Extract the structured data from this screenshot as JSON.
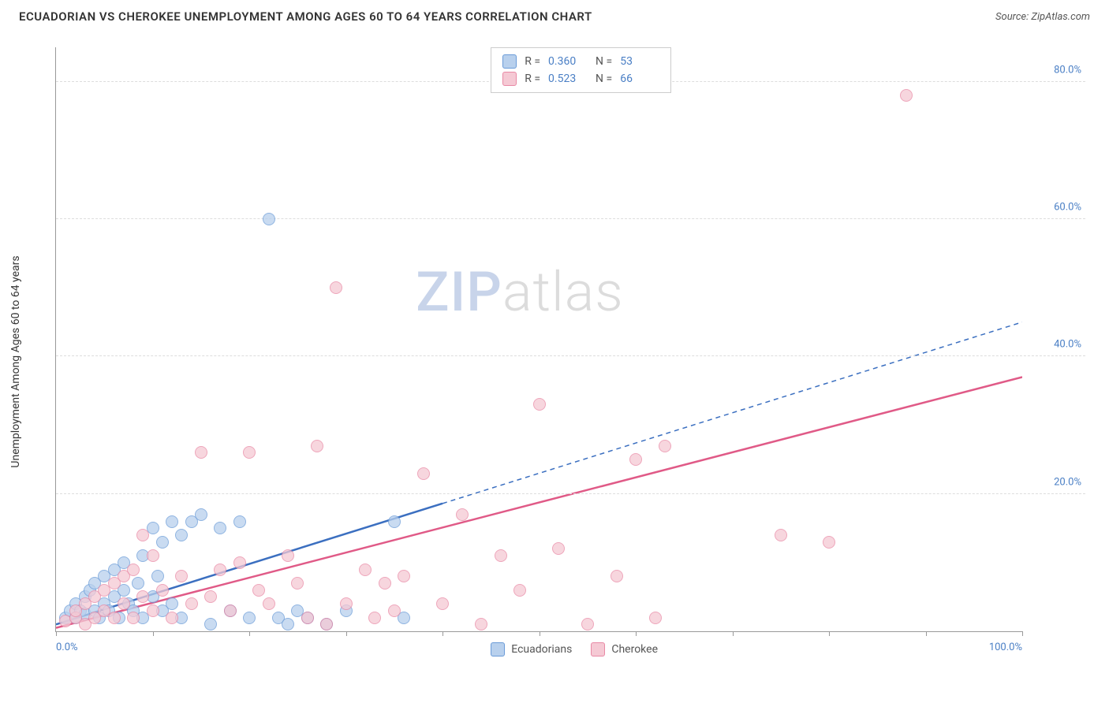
{
  "header": {
    "title": "ECUADORIAN VS CHEROKEE UNEMPLOYMENT AMONG AGES 60 TO 64 YEARS CORRELATION CHART",
    "source": "Source: ZipAtlas.com"
  },
  "watermark": {
    "part1": "ZIP",
    "part2": "atlas"
  },
  "chart": {
    "type": "scatter",
    "y_axis_label": "Unemployment Among Ages 60 to 64 years",
    "xlim": [
      0,
      100
    ],
    "ylim": [
      0,
      85
    ],
    "x_ticks": [
      0,
      10,
      20,
      30,
      40,
      50,
      60,
      70,
      80,
      90,
      100
    ],
    "x_tick_labels_shown": {
      "0": "0.0%",
      "100": "100.0%"
    },
    "y_tick_values": [
      20,
      40,
      60,
      80
    ],
    "y_tick_labels": [
      "20.0%",
      "40.0%",
      "60.0%",
      "80.0%"
    ],
    "grid_color": "#dddddd",
    "axis_color": "#999999",
    "tick_label_color": "#4a7fc5",
    "background_color": "#ffffff",
    "marker_radius": 8,
    "marker_border_width": 1.5,
    "series": [
      {
        "name": "Ecuadorians",
        "color_fill": "#b8d0ed",
        "color_border": "#6a9bd8",
        "r_value": "0.360",
        "n_value": "53",
        "trend": {
          "x1": 0,
          "y1": 1,
          "x2": 100,
          "y2": 45,
          "solid_until_x": 40,
          "line_width": 2.5,
          "color": "#3b6fc0"
        },
        "points": [
          [
            1,
            2
          ],
          [
            1.5,
            3
          ],
          [
            2,
            4
          ],
          [
            2,
            2
          ],
          [
            2.5,
            3
          ],
          [
            3,
            2.5
          ],
          [
            3,
            5
          ],
          [
            3.5,
            6
          ],
          [
            4,
            3
          ],
          [
            4,
            7
          ],
          [
            4.5,
            2
          ],
          [
            5,
            4
          ],
          [
            5,
            8
          ],
          [
            5.5,
            3
          ],
          [
            6,
            5
          ],
          [
            6,
            9
          ],
          [
            6.5,
            2
          ],
          [
            7,
            6
          ],
          [
            7,
            10
          ],
          [
            7.5,
            4
          ],
          [
            8,
            3
          ],
          [
            8.5,
            7
          ],
          [
            9,
            2
          ],
          [
            9,
            11
          ],
          [
            10,
            5
          ],
          [
            10,
            15
          ],
          [
            10.5,
            8
          ],
          [
            11,
            3
          ],
          [
            11,
            13
          ],
          [
            12,
            4
          ],
          [
            12,
            16
          ],
          [
            13,
            2
          ],
          [
            13,
            14
          ],
          [
            14,
            16
          ],
          [
            15,
            17
          ],
          [
            16,
            1
          ],
          [
            17,
            15
          ],
          [
            18,
            3
          ],
          [
            19,
            16
          ],
          [
            20,
            2
          ],
          [
            22,
            60
          ],
          [
            23,
            2
          ],
          [
            24,
            1
          ],
          [
            25,
            3
          ],
          [
            26,
            2
          ],
          [
            28,
            1
          ],
          [
            30,
            3
          ],
          [
            35,
            16
          ],
          [
            36,
            2
          ]
        ]
      },
      {
        "name": "Cherokee",
        "color_fill": "#f5c9d4",
        "color_border": "#e989a5",
        "r_value": "0.523",
        "n_value": "66",
        "trend": {
          "x1": 0,
          "y1": 0.5,
          "x2": 100,
          "y2": 37,
          "solid_until_x": 100,
          "line_width": 2.5,
          "color": "#e05a87"
        },
        "points": [
          [
            1,
            1.5
          ],
          [
            2,
            2
          ],
          [
            2,
            3
          ],
          [
            3,
            1
          ],
          [
            3,
            4
          ],
          [
            4,
            2
          ],
          [
            4,
            5
          ],
          [
            5,
            3
          ],
          [
            5,
            6
          ],
          [
            6,
            2
          ],
          [
            6,
            7
          ],
          [
            7,
            4
          ],
          [
            7,
            8
          ],
          [
            8,
            2
          ],
          [
            8,
            9
          ],
          [
            9,
            5
          ],
          [
            9,
            14
          ],
          [
            10,
            3
          ],
          [
            10,
            11
          ],
          [
            11,
            6
          ],
          [
            12,
            2
          ],
          [
            13,
            8
          ],
          [
            14,
            4
          ],
          [
            15,
            26
          ],
          [
            16,
            5
          ],
          [
            17,
            9
          ],
          [
            18,
            3
          ],
          [
            19,
            10
          ],
          [
            20,
            26
          ],
          [
            21,
            6
          ],
          [
            22,
            4
          ],
          [
            24,
            11
          ],
          [
            25,
            7
          ],
          [
            26,
            2
          ],
          [
            27,
            27
          ],
          [
            28,
            1
          ],
          [
            29,
            50
          ],
          [
            30,
            4
          ],
          [
            32,
            9
          ],
          [
            33,
            2
          ],
          [
            34,
            7
          ],
          [
            35,
            3
          ],
          [
            36,
            8
          ],
          [
            38,
            23
          ],
          [
            40,
            4
          ],
          [
            42,
            17
          ],
          [
            44,
            1
          ],
          [
            46,
            11
          ],
          [
            48,
            6
          ],
          [
            50,
            33
          ],
          [
            52,
            12
          ],
          [
            55,
            1
          ],
          [
            58,
            8
          ],
          [
            60,
            25
          ],
          [
            62,
            2
          ],
          [
            63,
            27
          ],
          [
            75,
            14
          ],
          [
            80,
            13
          ],
          [
            88,
            78
          ]
        ]
      }
    ],
    "legend_top": {
      "r_label": "R =",
      "n_label": "N ="
    },
    "legend_bottom": [
      {
        "label": "Ecuadorians",
        "swatch_fill": "#b8d0ed",
        "swatch_border": "#6a9bd8"
      },
      {
        "label": "Cherokee",
        "swatch_fill": "#f5c9d4",
        "swatch_border": "#e989a5"
      }
    ]
  }
}
